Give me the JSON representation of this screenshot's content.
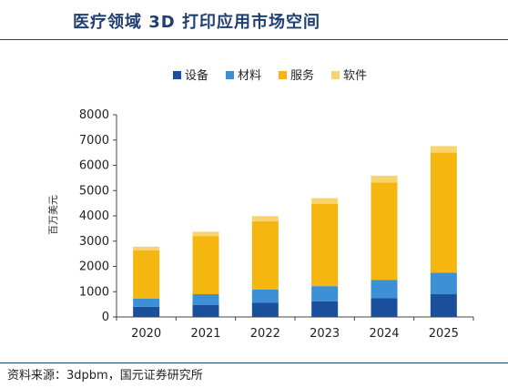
{
  "header": {
    "title": "医疗领域 3D 打印应用市场空间"
  },
  "footer": {
    "source": "资料来源：3dpbm，国元证券研究所"
  },
  "chart_data": {
    "type": "bar",
    "stacked": true,
    "title": "医疗领域 3D 打印应用市场空间",
    "xlabel": "",
    "ylabel": "百万美元",
    "ylim": [
      0,
      8000
    ],
    "yticks": [
      "0",
      "1000",
      "2000",
      "3000",
      "4000",
      "5000",
      "6000",
      "7000",
      "8000"
    ],
    "categories": [
      "2020",
      "2021",
      "2022",
      "2023",
      "2024",
      "2025"
    ],
    "legend_position": "top",
    "grid": false,
    "series": [
      {
        "name": "设备",
        "color": "#1a4f9c",
        "values": [
          400,
          480,
          570,
          620,
          750,
          900
        ]
      },
      {
        "name": "材料",
        "color": "#3d8fd6",
        "values": [
          330,
          420,
          520,
          600,
          720,
          850
        ]
      },
      {
        "name": "服务",
        "color": "#f5b610",
        "values": [
          1900,
          2300,
          2700,
          3250,
          3850,
          4750
        ]
      },
      {
        "name": "软件",
        "color": "#f9d36b",
        "values": [
          150,
          170,
          200,
          230,
          270,
          260
        ]
      }
    ]
  }
}
